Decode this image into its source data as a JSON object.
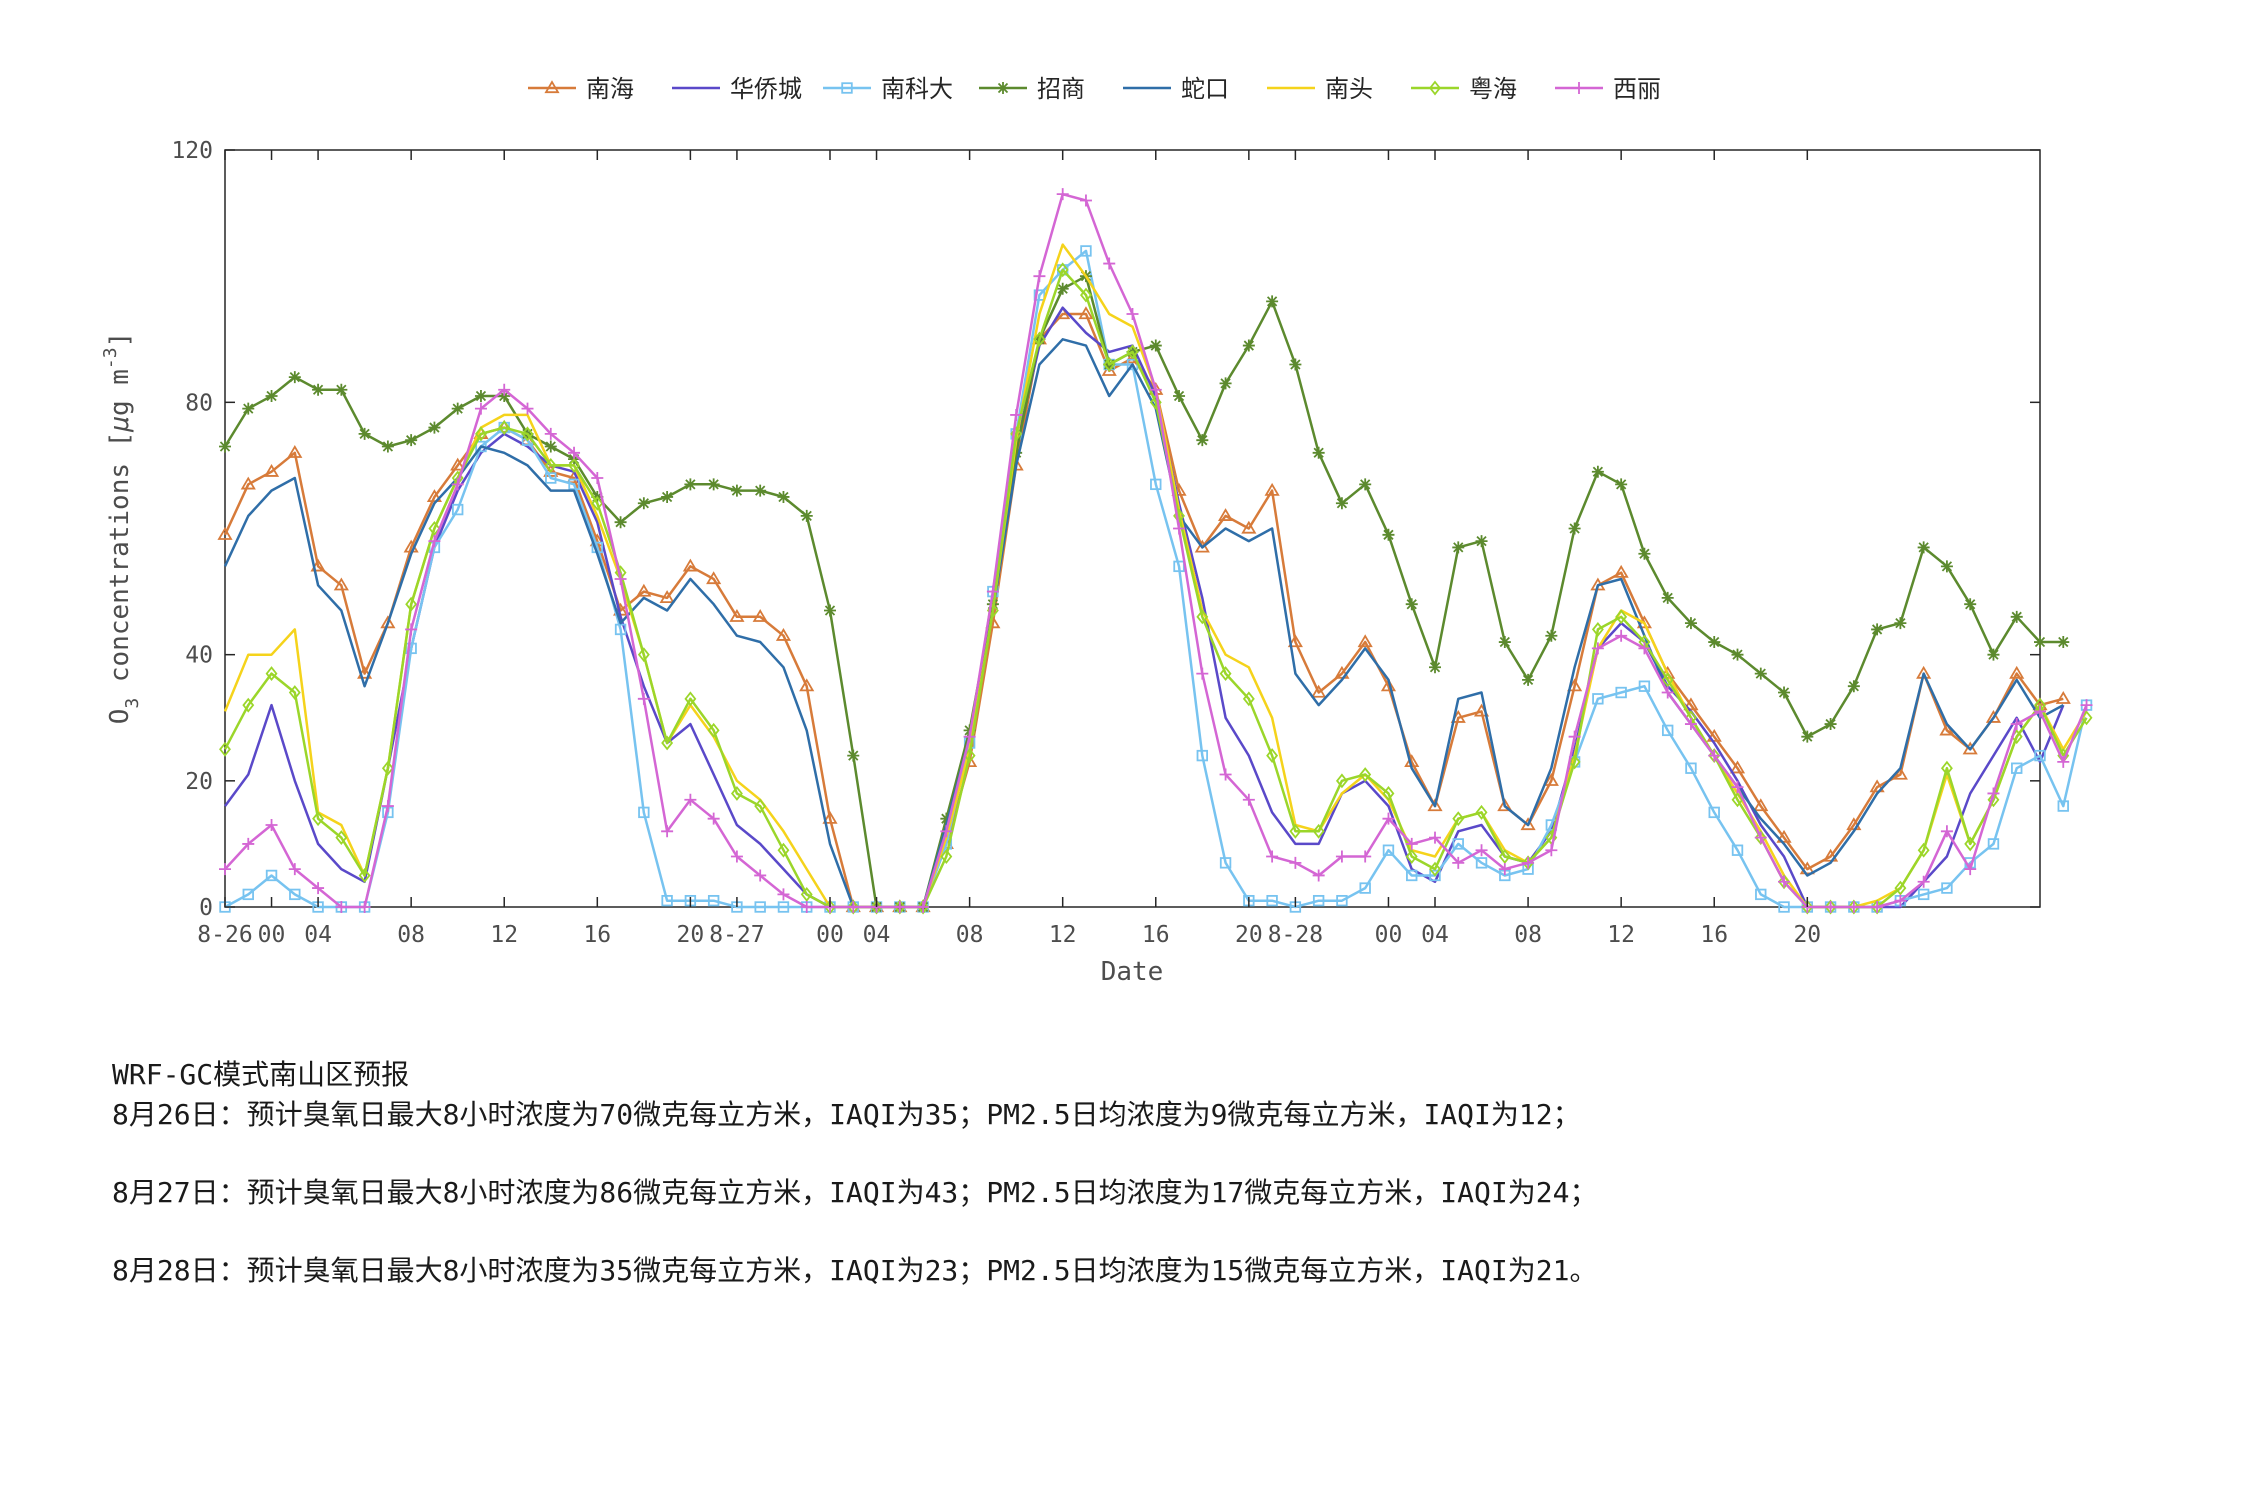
{
  "chart_data": {
    "type": "line",
    "xlabel": "Date",
    "ylabel": "O3 concentrations [μg m-3]",
    "ylabel_parts": {
      "o": "O",
      "sub": "3",
      "main": " concentrations [",
      "mu": "μ",
      "g": "g m",
      "sup": "-3",
      "close": "]"
    },
    "ylim": [
      0,
      120
    ],
    "yticks": [
      0,
      20,
      40,
      80,
      120
    ],
    "ytick_labels": [
      "0",
      "20",
      "40",
      "80",
      "120"
    ],
    "x_start": "2024-08-26 00:00",
    "x_step_hours": 1,
    "xticks": [
      {
        "x": 0,
        "label": "8-26"
      },
      {
        "x": 2,
        "label": "00"
      },
      {
        "x": 4,
        "label": "04"
      },
      {
        "x": 8,
        "label": "08"
      },
      {
        "x": 12,
        "label": "12"
      },
      {
        "x": 16,
        "label": "16"
      },
      {
        "x": 20,
        "label": "20"
      },
      {
        "x": 22,
        "label": "8-27"
      },
      {
        "x": 26,
        "label": "00"
      },
      {
        "x": 28,
        "label": "04"
      },
      {
        "x": 32,
        "label": "08"
      },
      {
        "x": 36,
        "label": "12"
      },
      {
        "x": 40,
        "label": "16"
      },
      {
        "x": 44,
        "label": "20"
      },
      {
        "x": 46,
        "label": "8-28"
      },
      {
        "x": 50,
        "label": "00"
      },
      {
        "x": 52,
        "label": "04"
      },
      {
        "x": 56,
        "label": "08"
      },
      {
        "x": 60,
        "label": "12"
      },
      {
        "x": 64,
        "label": "16"
      },
      {
        "x": 68,
        "label": "20"
      }
    ],
    "xlim": [
      0,
      78
    ],
    "grid": false,
    "legend_position": "top-center",
    "series": [
      {
        "name": "南海",
        "color": "#D77B3A",
        "marker": "triangle",
        "values": [
          59,
          67,
          69,
          72,
          54,
          51,
          37,
          45,
          57,
          65,
          70,
          75,
          76,
          74,
          69,
          68,
          58,
          47,
          50,
          49,
          54,
          52,
          46,
          46,
          43,
          35,
          14,
          0,
          0,
          0,
          0,
          10,
          23,
          45,
          70,
          90,
          94,
          94,
          85,
          87,
          82,
          66,
          57,
          62,
          60,
          66,
          42,
          34,
          37,
          42,
          35,
          23,
          16,
          30,
          31,
          16,
          13,
          20,
          35,
          51,
          53,
          45,
          37,
          32,
          27,
          22,
          16,
          11,
          6,
          8,
          13,
          19,
          21,
          37,
          28,
          25,
          30,
          37,
          32,
          33
        ]
      },
      {
        "name": "华侨城",
        "color": "#5A49C9",
        "marker": "none",
        "values": [
          16,
          21,
          32,
          20,
          10,
          6,
          4,
          22,
          41,
          57,
          66,
          72,
          75,
          73,
          70,
          69,
          61,
          46,
          35,
          26,
          29,
          21,
          13,
          10,
          6,
          2,
          0,
          0,
          0,
          0,
          0,
          12,
          26,
          47,
          73,
          89,
          95,
          91,
          88,
          89,
          81,
          64,
          49,
          30,
          24,
          15,
          10,
          10,
          18,
          20,
          16,
          6,
          4,
          12,
          13,
          8,
          7,
          12,
          25,
          41,
          45,
          42,
          35,
          31,
          26,
          20,
          13,
          8,
          0,
          0,
          0,
          0,
          0,
          4,
          8,
          18,
          24,
          30,
          23,
          32
        ]
      },
      {
        "name": "南科大",
        "color": "#77C3F0",
        "marker": "square",
        "values": [
          0,
          2,
          5,
          2,
          0,
          0,
          0,
          15,
          41,
          57,
          63,
          73,
          76,
          74,
          68,
          67,
          57,
          44,
          15,
          1,
          1,
          1,
          0,
          0,
          0,
          0,
          0,
          0,
          0,
          0,
          0,
          10,
          26,
          50,
          75,
          97,
          101,
          104,
          86,
          86,
          67,
          54,
          24,
          7,
          1,
          1,
          0,
          1,
          1,
          3,
          9,
          5,
          5,
          10,
          7,
          5,
          6,
          13,
          23,
          33,
          34,
          35,
          28,
          22,
          15,
          9,
          2,
          0,
          0,
          0,
          0,
          0,
          1,
          2,
          3,
          7,
          10,
          22,
          24,
          16,
          32
        ]
      },
      {
        "name": "招商",
        "color": "#5C8A2E",
        "marker": "star",
        "values": [
          73,
          79,
          81,
          84,
          82,
          82,
          75,
          73,
          74,
          76,
          79,
          81,
          81,
          75,
          73,
          71,
          65,
          61,
          64,
          65,
          67,
          67,
          66,
          66,
          65,
          62,
          47,
          24,
          0,
          0,
          0,
          14,
          28,
          48,
          72,
          90,
          98,
          100,
          86,
          88,
          89,
          81,
          74,
          83,
          89,
          96,
          86,
          72,
          64,
          67,
          59,
          48,
          38,
          57,
          58,
          42,
          36,
          43,
          60,
          69,
          67,
          56,
          49,
          45,
          42,
          40,
          37,
          34,
          27,
          29,
          35,
          44,
          45,
          57,
          54,
          48,
          40,
          46,
          42,
          42
        ]
      },
      {
        "name": "蛇口",
        "color": "#2F6EA8",
        "marker": "none",
        "values": [
          54,
          62,
          66,
          68,
          51,
          47,
          35,
          45,
          56,
          64,
          68,
          73,
          72,
          70,
          66,
          66,
          56,
          45,
          49,
          47,
          52,
          48,
          43,
          42,
          38,
          28,
          10,
          0,
          0,
          0,
          0,
          13,
          27,
          47,
          70,
          86,
          90,
          89,
          81,
          86,
          79,
          62,
          57,
          60,
          58,
          60,
          37,
          32,
          36,
          41,
          36,
          22,
          16,
          33,
          34,
          16,
          13,
          22,
          38,
          51,
          52,
          43,
          34,
          29,
          24,
          19,
          14,
          10,
          5,
          7,
          12,
          18,
          22,
          37,
          29,
          25,
          30,
          36,
          30,
          32
        ]
      },
      {
        "name": "南头",
        "color": "#F5D31B",
        "marker": "none",
        "values": [
          31,
          40,
          40,
          44,
          15,
          13,
          5,
          22,
          48,
          60,
          68,
          76,
          78,
          78,
          70,
          70,
          62,
          52,
          40,
          26,
          32,
          27,
          20,
          17,
          12,
          6,
          0,
          0,
          0,
          0,
          0,
          11,
          25,
          47,
          74,
          94,
          105,
          100,
          94,
          92,
          82,
          63,
          47,
          40,
          38,
          30,
          13,
          12,
          18,
          21,
          17,
          9,
          8,
          14,
          15,
          9,
          7,
          11,
          24,
          41,
          47,
          45,
          37,
          30,
          24,
          18,
          12,
          5,
          0,
          0,
          0,
          1,
          3,
          9,
          21,
          10,
          17,
          27,
          32,
          25,
          31
        ]
      },
      {
        "name": "粤海",
        "color": "#9BD62A",
        "marker": "diamond",
        "values": [
          25,
          32,
          37,
          34,
          14,
          11,
          5,
          22,
          48,
          60,
          68,
          75,
          76,
          75,
          70,
          70,
          64,
          53,
          40,
          26,
          33,
          28,
          18,
          16,
          9,
          2,
          0,
          0,
          0,
          0,
          0,
          8,
          24,
          47,
          75,
          90,
          101,
          97,
          86,
          88,
          80,
          62,
          46,
          37,
          33,
          24,
          12,
          12,
          20,
          21,
          18,
          8,
          6,
          14,
          15,
          8,
          7,
          11,
          23,
          44,
          46,
          42,
          36,
          30,
          24,
          17,
          11,
          4,
          0,
          0,
          0,
          0,
          3,
          9,
          22,
          10,
          17,
          27,
          32,
          24,
          30
        ]
      },
      {
        "name": "西丽",
        "color": "#D466D4",
        "marker": "plus",
        "values": [
          6,
          10,
          13,
          6,
          3,
          0,
          0,
          16,
          44,
          58,
          67,
          79,
          82,
          79,
          75,
          72,
          68,
          52,
          33,
          12,
          17,
          14,
          8,
          5,
          2,
          0,
          0,
          0,
          0,
          0,
          0,
          12,
          27,
          50,
          78,
          100,
          113,
          112,
          102,
          94,
          82,
          60,
          37,
          21,
          17,
          8,
          7,
          5,
          8,
          8,
          14,
          10,
          11,
          7,
          9,
          6,
          7,
          9,
          27,
          41,
          43,
          41,
          34,
          29,
          24,
          19,
          11,
          4,
          0,
          0,
          0,
          0,
          1,
          4,
          12,
          6,
          18,
          29,
          31,
          23,
          32
        ]
      }
    ]
  },
  "report": {
    "title": "WRF-GC模式南山区预报",
    "days": [
      "8月26日：预计臭氧日最大8小时浓度为70微克每立方米，IAQI为35；PM2.5日均浓度为9微克每立方米，IAQI为12；",
      "8月27日：预计臭氧日最大8小时浓度为86微克每立方米，IAQI为43；PM2.5日均浓度为17微克每立方米，IAQI为24；",
      "8月28日：预计臭氧日最大8小时浓度为35微克每立方米，IAQI为23；PM2.5日均浓度为15微克每立方米，IAQI为21。"
    ]
  }
}
